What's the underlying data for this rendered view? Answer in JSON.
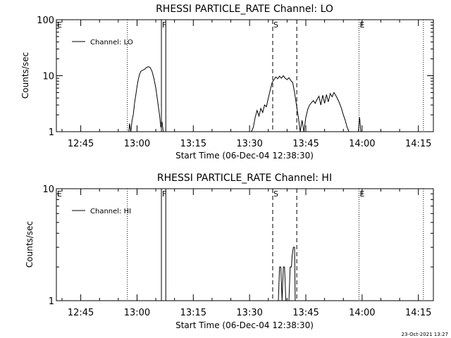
{
  "chart_data": [
    {
      "type": "line",
      "title": "RHESSI PARTICLE_RATE Channel: LO",
      "xlabel": "Start Time (06-Dec-04 12:38:30)",
      "ylabel": "Counts/sec",
      "yscale": "log",
      "ylim": [
        1,
        100
      ],
      "xlim": [
        "12:38:30",
        "14:19:00"
      ],
      "yticks": [
        "1",
        "10",
        "100"
      ],
      "xticks": [
        "12:45",
        "13:00",
        "13:15",
        "13:30",
        "13:45",
        "14:00",
        "14:15"
      ],
      "legend": {
        "position": "top-left",
        "entries": [
          "Channel: LO"
        ]
      },
      "series": [
        {
          "name": "Channel: LO",
          "points": [
            [
              "12:57:50",
              1
            ],
            [
              "12:58:00",
              1.4
            ],
            [
              "12:58:20",
              1
            ],
            [
              "12:58:40",
              1.6
            ],
            [
              "12:59:00",
              2
            ],
            [
              "12:59:20",
              3.2
            ],
            [
              "12:59:40",
              4.5
            ],
            [
              "13:00:00",
              6.5
            ],
            [
              "13:00:20",
              8.5
            ],
            [
              "13:00:40",
              10.5
            ],
            [
              "13:01:00",
              12
            ],
            [
              "13:01:30",
              12.5
            ],
            [
              "13:02:00",
              13
            ],
            [
              "13:02:30",
              14
            ],
            [
              "13:03:00",
              14.5
            ],
            [
              "13:03:30",
              14
            ],
            [
              "13:04:00",
              12
            ],
            [
              "13:04:30",
              9
            ],
            [
              "13:05:00",
              6
            ],
            [
              "13:05:30",
              3.5
            ],
            [
              "13:06:00",
              2
            ],
            [
              "13:06:20",
              1.2
            ],
            [
              "13:06:40",
              1.5
            ],
            [
              "13:07:00",
              1
            ],
            [
              "13:30:30",
              1
            ],
            [
              "13:31:00",
              1.2
            ],
            [
              "13:31:30",
              1.8
            ],
            [
              "13:32:00",
              2.4
            ],
            [
              "13:32:30",
              1.9
            ],
            [
              "13:33:00",
              2.6
            ],
            [
              "13:33:30",
              2.2
            ],
            [
              "13:34:00",
              3
            ],
            [
              "13:34:30",
              2.8
            ],
            [
              "13:35:00",
              4
            ],
            [
              "13:35:30",
              5.5
            ],
            [
              "13:36:00",
              7.5
            ],
            [
              "13:36:30",
              8.5
            ],
            [
              "13:37:00",
              9.5
            ],
            [
              "13:37:30",
              8.8
            ],
            [
              "13:38:00",
              9.8
            ],
            [
              "13:38:30",
              9
            ],
            [
              "13:39:00",
              10
            ],
            [
              "13:39:30",
              9
            ],
            [
              "13:40:00",
              8.5
            ],
            [
              "13:40:30",
              9.2
            ],
            [
              "13:41:00",
              8.2
            ],
            [
              "13:41:30",
              7.5
            ],
            [
              "13:42:00",
              5
            ],
            [
              "13:42:30",
              3
            ],
            [
              "13:43:00",
              1.8
            ],
            [
              "13:43:30",
              1
            ],
            [
              "13:44:00",
              1.6
            ],
            [
              "13:44:30",
              1
            ],
            [
              "13:45:00",
              1.8
            ],
            [
              "13:45:30",
              2.5
            ],
            [
              "13:46:00",
              3
            ],
            [
              "13:46:30",
              3.3
            ],
            [
              "13:47:00",
              3.6
            ],
            [
              "13:47:30",
              3.2
            ],
            [
              "13:48:00",
              3.8
            ],
            [
              "13:48:30",
              4.3
            ],
            [
              "13:49:00",
              3
            ],
            [
              "13:49:30",
              4.5
            ],
            [
              "13:50:00",
              3.2
            ],
            [
              "13:50:30",
              4.6
            ],
            [
              "13:51:00",
              3.4
            ],
            [
              "13:51:30",
              4.8
            ],
            [
              "13:52:00",
              4.2
            ],
            [
              "13:52:30",
              5
            ],
            [
              "13:53:00",
              4.4
            ],
            [
              "13:53:30",
              3.8
            ],
            [
              "13:54:00",
              3.2
            ],
            [
              "13:54:30",
              2.6
            ],
            [
              "13:55:00",
              2
            ],
            [
              "13:55:30",
              1.6
            ],
            [
              "13:56:00",
              1.2
            ],
            [
              "13:56:30",
              1
            ],
            [
              "13:59:00",
              1
            ],
            [
              "13:59:20",
              1.8
            ],
            [
              "13:59:40",
              1
            ]
          ]
        }
      ],
      "markers": [
        {
          "label": "E",
          "time": "12:38:30",
          "style": "dotted"
        },
        {
          "label": "",
          "time": "12:57:25",
          "style": "dotted"
        },
        {
          "label": "F",
          "time": "13:06:30",
          "style": "solid"
        },
        {
          "label": "",
          "time": "13:07:40",
          "style": "solid"
        },
        {
          "label": "S",
          "time": "13:36:10",
          "style": "dashed"
        },
        {
          "label": "",
          "time": "13:42:35",
          "style": "dashed"
        },
        {
          "label": "E",
          "time": "13:59:10",
          "style": "dotted"
        },
        {
          "label": "",
          "time": "14:16:20",
          "style": "dotted"
        }
      ]
    },
    {
      "type": "line",
      "title": "RHESSI PARTICLE_RATE Channel: HI",
      "xlabel": "Start Time (06-Dec-04 12:38:30)",
      "ylabel": "Counts/sec",
      "yscale": "log",
      "ylim": [
        1,
        10
      ],
      "xlim": [
        "12:38:30",
        "14:19:00"
      ],
      "yticks": [
        "1",
        "10"
      ],
      "xticks": [
        "12:45",
        "13:00",
        "13:15",
        "13:30",
        "13:45",
        "14:00",
        "14:15"
      ],
      "legend": {
        "position": "top-left",
        "entries": [
          "Channel: HI"
        ]
      },
      "series": [
        {
          "name": "Channel: HI",
          "points": [
            [
              "13:37:40",
              1
            ],
            [
              "13:38:00",
              2
            ],
            [
              "13:38:20",
              2
            ],
            [
              "13:38:40",
              1
            ],
            [
              "13:39:00",
              2
            ],
            [
              "13:39:20",
              2
            ],
            [
              "13:39:40",
              1
            ],
            [
              "13:40:30",
              1
            ],
            [
              "13:40:50",
              2
            ],
            [
              "13:41:10",
              2
            ],
            [
              "13:41:20",
              2.5
            ],
            [
              "13:41:40",
              3
            ],
            [
              "13:42:00",
              3
            ],
            [
              "13:42:10",
              1
            ]
          ]
        }
      ],
      "markers": [
        {
          "label": "E",
          "time": "12:38:30",
          "style": "dotted"
        },
        {
          "label": "",
          "time": "12:57:25",
          "style": "dotted"
        },
        {
          "label": "F",
          "time": "13:06:30",
          "style": "solid"
        },
        {
          "label": "",
          "time": "13:07:40",
          "style": "solid"
        },
        {
          "label": "S",
          "time": "13:36:10",
          "style": "dashed"
        },
        {
          "label": "",
          "time": "13:42:35",
          "style": "dashed"
        },
        {
          "label": "E",
          "time": "13:59:10",
          "style": "dotted"
        },
        {
          "label": "",
          "time": "14:16:20",
          "style": "dotted"
        }
      ]
    }
  ],
  "footer": {
    "timestamp": "23-Oct-2021 13:27"
  }
}
